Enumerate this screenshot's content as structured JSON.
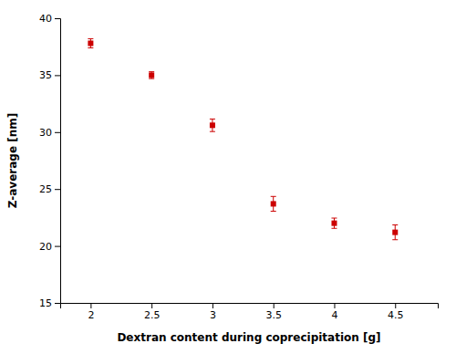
{
  "chart_data": {
    "type": "scatter",
    "x": [
      2.0,
      2.5,
      3.0,
      3.5,
      4.0,
      4.5
    ],
    "values": [
      37.8,
      35.0,
      30.6,
      23.7,
      22.0,
      21.2
    ],
    "errors": [
      0.4,
      0.3,
      0.55,
      0.65,
      0.45,
      0.65
    ],
    "marker": "square",
    "color": "#CC0000",
    "xlabel": "Dextran content during coprecipitation [g]",
    "ylabel": "Z-average [nm]",
    "xlim": [
      1.75,
      4.85
    ],
    "ylim": [
      15,
      40
    ],
    "xticks": [
      2.0,
      2.5,
      3.0,
      3.5,
      4.0,
      4.5
    ],
    "yticks": [
      15,
      20,
      25,
      30,
      35,
      40
    ],
    "grid": false
  }
}
